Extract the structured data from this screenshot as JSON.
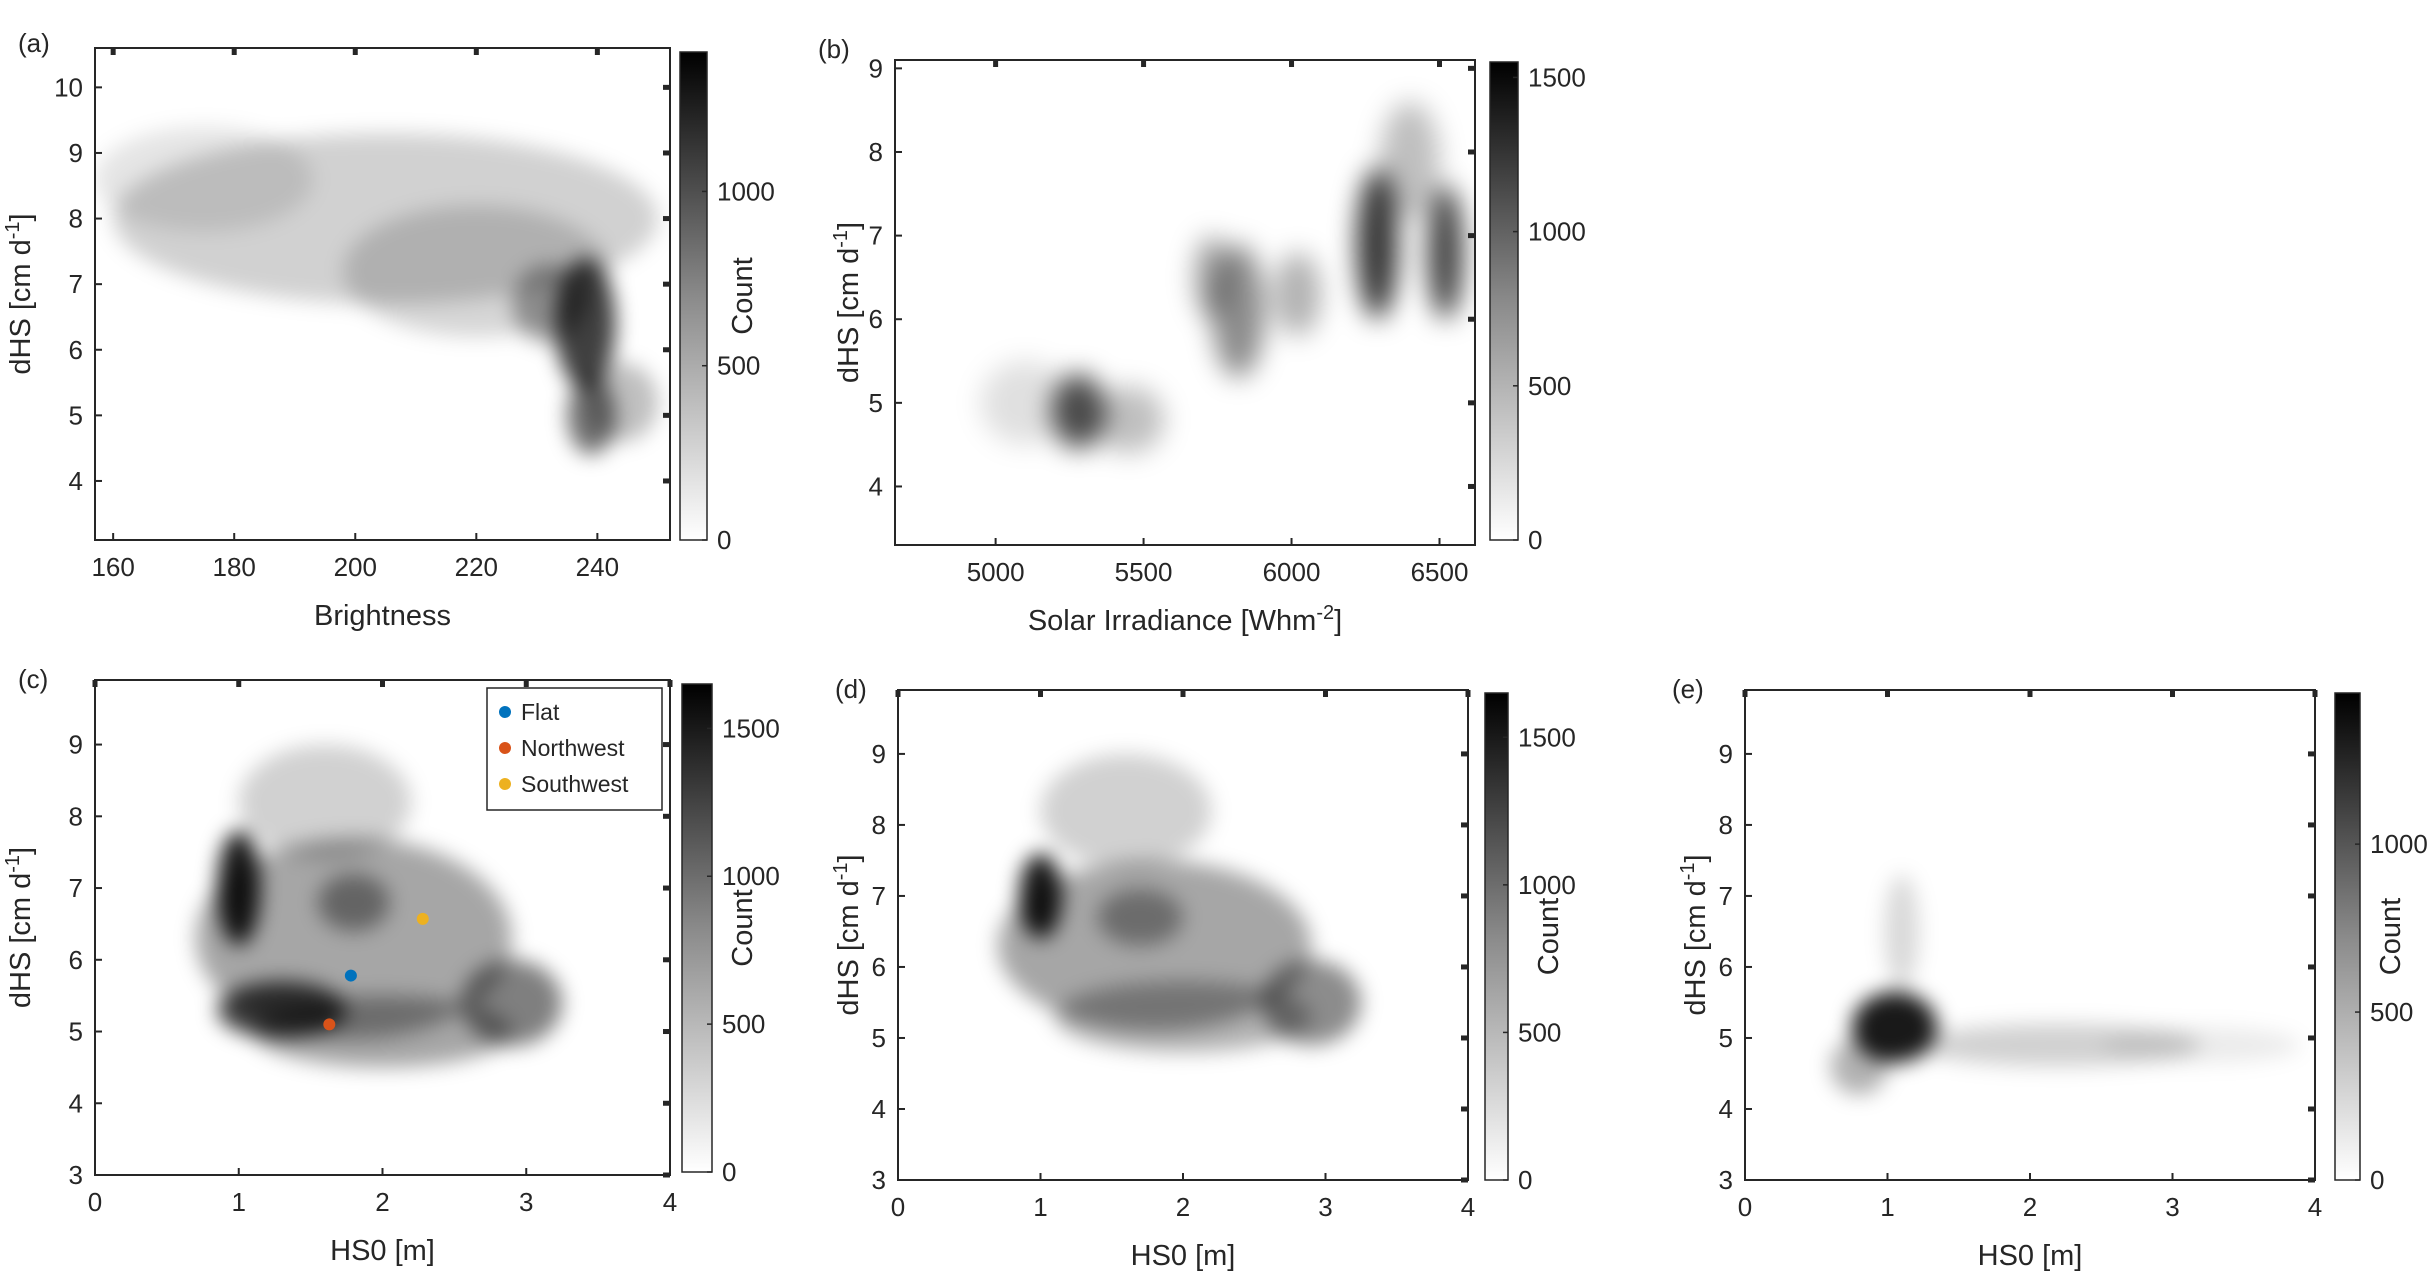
{
  "chart_data": [
    {
      "panel": "(a)",
      "type": "heatmap",
      "xlabel": "Brightness",
      "ylabel": "dHS [cm d⁻¹]",
      "xlim": [
        157,
        252
      ],
      "ylim": [
        3.1,
        10.6
      ],
      "xticks": [
        160,
        180,
        200,
        220,
        240
      ],
      "yticks": [
        4,
        5,
        6,
        7,
        8,
        9,
        10
      ],
      "colorbar": {
        "label": "Count",
        "range": [
          0,
          1400
        ],
        "ticks": [
          0,
          500,
          1000
        ]
      },
      "density_peaks": [
        {
          "x": 238,
          "y": 6.2,
          "count": 1350
        },
        {
          "x": 239,
          "y": 4.8,
          "count": 900
        },
        {
          "x": 200,
          "y": 8.0,
          "count": 300
        }
      ]
    },
    {
      "panel": "(b)",
      "type": "heatmap",
      "xlabel": "Solar Irradiance [Whm⁻²]",
      "ylabel": "dHS [cm d⁻¹]",
      "xlim": [
        4660,
        6620
      ],
      "ylim": [
        3.3,
        9.1
      ],
      "xticks": [
        5000,
        5500,
        6000,
        6500
      ],
      "yticks": [
        4,
        5,
        6,
        7,
        8,
        9
      ],
      "colorbar": {
        "label": "",
        "range": [
          0,
          1550
        ],
        "ticks": [
          0,
          500,
          1000,
          1500
        ]
      },
      "density_peaks": [
        {
          "x": 6300,
          "y": 6.8,
          "count": 1500
        },
        {
          "x": 6520,
          "y": 6.7,
          "count": 1400
        },
        {
          "x": 5270,
          "y": 4.9,
          "count": 950
        },
        {
          "x": 5820,
          "y": 6.0,
          "count": 800
        },
        {
          "x": 5730,
          "y": 6.5,
          "count": 600
        }
      ]
    },
    {
      "panel": "(c)",
      "type": "heatmap",
      "xlabel": "HS0 [m]",
      "ylabel": "dHS [cm d⁻¹]",
      "xlim": [
        0,
        4
      ],
      "ylim": [
        3,
        9.9
      ],
      "xticks": [
        0,
        1,
        2,
        3,
        4
      ],
      "yticks": [
        3,
        4,
        5,
        6,
        7,
        8,
        9
      ],
      "colorbar": {
        "label": "Count",
        "range": [
          0,
          1650
        ],
        "ticks": [
          0,
          500,
          1000,
          1500
        ]
      },
      "legend": {
        "placement": "top-right"
      },
      "points": [
        {
          "name": "Flat",
          "x": 1.78,
          "y": 5.78,
          "color": "#0072BD"
        },
        {
          "name": "Northwest",
          "x": 1.63,
          "y": 5.1,
          "color": "#D95319"
        },
        {
          "name": "Southwest",
          "x": 2.28,
          "y": 6.57,
          "color": "#EDB120"
        }
      ],
      "density_peaks": [
        {
          "x": 1.0,
          "y": 6.9,
          "count": 1600
        },
        {
          "x": 1.2,
          "y": 5.2,
          "count": 1400
        },
        {
          "x": 1.8,
          "y": 6.8,
          "count": 800
        },
        {
          "x": 2.9,
          "y": 5.5,
          "count": 700
        }
      ]
    },
    {
      "panel": "(d)",
      "type": "heatmap",
      "xlabel": "HS0 [m]",
      "ylabel": "dHS [cm d⁻¹]",
      "xlim": [
        0,
        4
      ],
      "ylim": [
        3,
        9.9
      ],
      "xticks": [
        0,
        1,
        2,
        3,
        4
      ],
      "yticks": [
        3,
        4,
        5,
        6,
        7,
        8,
        9
      ],
      "colorbar": {
        "label": "Count",
        "range": [
          0,
          1650
        ],
        "ticks": [
          0,
          500,
          1000,
          1500
        ]
      },
      "density_peaks": [
        {
          "x": 1.0,
          "y": 7.0,
          "count": 1600
        },
        {
          "x": 1.7,
          "y": 6.7,
          "count": 800
        },
        {
          "x": 2.9,
          "y": 5.6,
          "count": 700
        }
      ]
    },
    {
      "panel": "(e)",
      "type": "heatmap",
      "xlabel": "HS0 [m]",
      "ylabel": "dHS [cm d⁻¹]",
      "xlim": [
        0,
        4
      ],
      "ylim": [
        3,
        9.9
      ],
      "xticks": [
        0,
        1,
        2,
        3,
        4
      ],
      "yticks": [
        3,
        4,
        5,
        6,
        7,
        8,
        9
      ],
      "colorbar": {
        "label": "Count",
        "range": [
          0,
          1450
        ],
        "ticks": [
          0,
          500,
          1000
        ]
      },
      "density_peaks": [
        {
          "x": 1.05,
          "y": 5.15,
          "count": 1400
        },
        {
          "x": 2.3,
          "y": 4.9,
          "count": 250
        }
      ]
    }
  ]
}
